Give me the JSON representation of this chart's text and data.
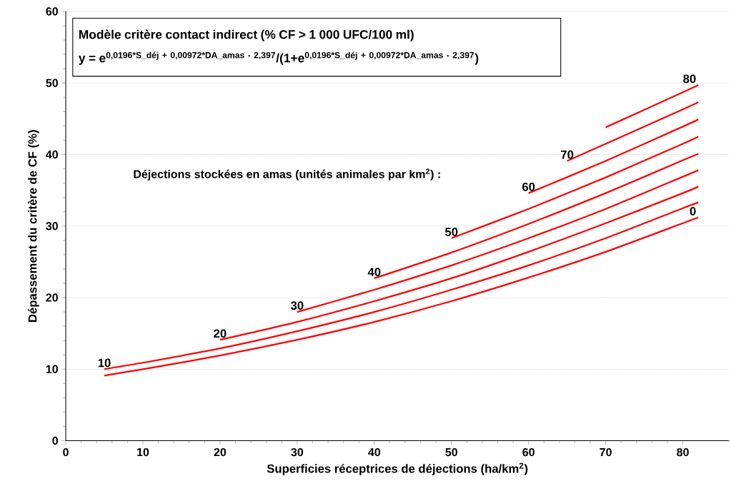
{
  "chart_data": {
    "type": "line",
    "title": "Modèle critère contact indirect (% CF > 1 000 UFC/100 ml)",
    "subtitle": "y = e$^{0,0196*S_déj + 0,00972*DA_amas - 2,397}$/(1+e$^{0,0196*S_déj + 0,00972*DA_amas - 2,397}$)",
    "xlabel": "Superficies réceptrices de déjections (ha/km$^{2}$)",
    "ylabel": "Dépassement du critère de CF (%)",
    "annotations": [
      "Déjections stockées en amas (unités animales par km$^{2}$) :"
    ],
    "series": [
      {
        "name": "0",
        "color": "#ff0000",
        "x": [
          5,
          10,
          20,
          30,
          40,
          50,
          60,
          70,
          80,
          82
        ],
        "values": [
          9.1,
          10.0,
          11.9,
          14.1,
          16.6,
          19.5,
          22.8,
          26.4,
          30.4,
          31.2
        ]
      },
      {
        "name": "10",
        "color": "#ff0000",
        "x": [
          5,
          10,
          20,
          30,
          40,
          50,
          60,
          70,
          80,
          82
        ],
        "values": [
          10.0,
          10.9,
          12.9,
          15.3,
          18.0,
          21.1,
          24.5,
          28.3,
          32.5,
          33.3
        ]
      },
      {
        "name": "20",
        "color": "#ff0000",
        "x": [
          20,
          30,
          40,
          50,
          60,
          70,
          80,
          82
        ],
        "values": [
          14.1,
          16.6,
          19.5,
          22.7,
          26.4,
          30.4,
          34.6,
          35.5
        ]
      },
      {
        "name": "30",
        "color": "#ff0000",
        "x": [
          30,
          40,
          50,
          60,
          70,
          80,
          82
        ],
        "values": [
          18.0,
          21.1,
          24.5,
          28.3,
          32.4,
          36.9,
          37.8
        ]
      },
      {
        "name": "40",
        "color": "#ff0000",
        "x": [
          40,
          50,
          60,
          70,
          80,
          82
        ],
        "values": [
          22.7,
          26.3,
          30.3,
          34.6,
          39.2,
          40.1
        ]
      },
      {
        "name": "50",
        "color": "#ff0000",
        "x": [
          50,
          60,
          70,
          80,
          82
        ],
        "values": [
          28.3,
          32.4,
          36.8,
          41.5,
          42.5
        ]
      },
      {
        "name": "60",
        "color": "#ff0000",
        "x": [
          60,
          70,
          80,
          82
        ],
        "values": [
          34.6,
          39.1,
          43.9,
          44.9
        ]
      },
      {
        "name": "70",
        "color": "#ff0000",
        "x": [
          65,
          70,
          80,
          82
        ],
        "values": [
          39.1,
          41.5,
          46.3,
          47.3
        ]
      },
      {
        "name": "80",
        "color": "#ff0000",
        "x": [
          70,
          80,
          82
        ],
        "values": [
          43.8,
          48.7,
          49.7
        ]
      }
    ],
    "xlim": [
      0,
      86
    ],
    "ylim": [
      0,
      60
    ],
    "xticks": [
      0,
      10,
      20,
      30,
      40,
      50,
      60,
      70,
      80
    ],
    "yticks": [
      0,
      10,
      20,
      30,
      40,
      50,
      60
    ],
    "grid": "y"
  }
}
